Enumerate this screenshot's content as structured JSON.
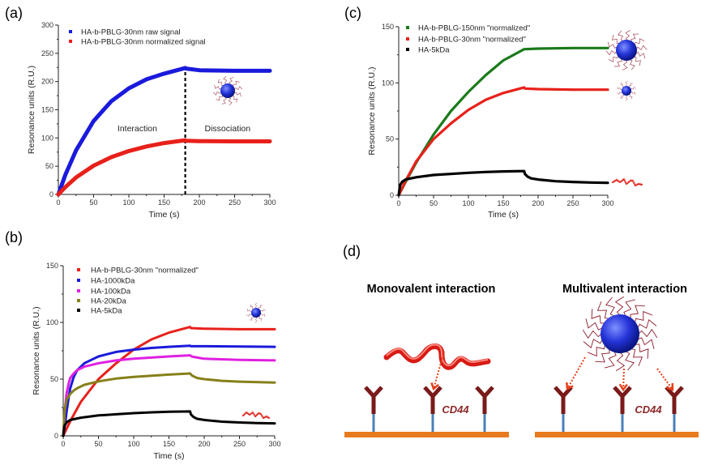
{
  "panel_labels": {
    "a": "(a)",
    "b": "(b)",
    "c": "(c)",
    "d": "(d)"
  },
  "chart_data": [
    {
      "panel": "(a)",
      "type": "line",
      "xlabel": "Time (s)",
      "ylabel": "Resonance units (R.U.)",
      "xlim": [
        0,
        300
      ],
      "ylim": [
        0,
        300
      ],
      "xticks": [
        0,
        50,
        100,
        150,
        200,
        250,
        300
      ],
      "yticks": [
        0,
        50,
        100,
        150,
        200,
        250,
        300
      ],
      "grid": false,
      "legend": "top-left",
      "vline_x": 180,
      "annotations": [
        "Interaction",
        "Dissociation"
      ],
      "series": [
        {
          "name": "HA-b-PBLG-30nm raw signal",
          "color": "#1a1adc",
          "x": [
            0,
            10,
            25,
            50,
            75,
            100,
            125,
            150,
            180,
            181,
            200,
            250,
            300
          ],
          "y": [
            0,
            35,
            78,
            130,
            165,
            188,
            204,
            214,
            224,
            223,
            220,
            219,
            219
          ]
        },
        {
          "name": "HA-b-PBLG-30nm normalized signal",
          "color": "#e8201a",
          "x": [
            0,
            10,
            25,
            50,
            75,
            100,
            125,
            150,
            180,
            181,
            200,
            250,
            300
          ],
          "y": [
            0,
            13,
            30,
            51,
            66,
            77,
            85,
            91,
            96,
            95,
            94.5,
            94,
            94
          ]
        }
      ]
    },
    {
      "panel": "(b)",
      "type": "line",
      "xlabel": "Time (s)",
      "ylabel": "Resonance units (R.U.)",
      "xlim": [
        0,
        300
      ],
      "ylim": [
        0,
        150
      ],
      "xticks": [
        0,
        50,
        100,
        150,
        200,
        250,
        300
      ],
      "yticks": [
        0,
        50,
        100,
        150
      ],
      "grid": false,
      "legend": "top-left",
      "series": [
        {
          "name": "HA-b-PBLG-30nm \"normalized\"",
          "color": "#e8201a",
          "x": [
            0,
            10,
            25,
            50,
            75,
            100,
            125,
            150,
            180,
            181,
            200,
            250,
            300
          ],
          "y": [
            0,
            13,
            30,
            50,
            64,
            76,
            85,
            91,
            96,
            95,
            94.5,
            94,
            94
          ]
        },
        {
          "name": "HA-1000kDa",
          "color": "#1a1adc",
          "x": [
            0,
            3,
            5,
            8,
            10,
            15,
            20,
            30,
            40,
            50,
            75,
            100,
            125,
            150,
            180,
            181,
            200,
            250,
            300
          ],
          "y": [
            0,
            12,
            22,
            35,
            42,
            52,
            58,
            64,
            67,
            70,
            74,
            76,
            77.5,
            78.5,
            79.5,
            79,
            79,
            78.7,
            78.5
          ]
        },
        {
          "name": "HA-100kDa",
          "color": "#e020e0",
          "x": [
            0,
            2,
            5,
            8,
            10,
            15,
            20,
            30,
            50,
            75,
            100,
            150,
            180,
            182,
            190,
            200,
            250,
            300
          ],
          "y": [
            0,
            20,
            38,
            47,
            51,
            55,
            58,
            61,
            64,
            66.5,
            68,
            70,
            71,
            70,
            69,
            68,
            67,
            66.5
          ]
        },
        {
          "name": "HA-20kDa",
          "color": "#86801a",
          "x": [
            0,
            2,
            5,
            10,
            15,
            20,
            30,
            50,
            75,
            100,
            150,
            180,
            183,
            190,
            200,
            225,
            250,
            300
          ],
          "y": [
            0,
            22,
            32,
            37,
            40,
            42,
            45,
            48,
            50.5,
            52,
            54,
            55,
            53,
            51,
            50,
            48.5,
            47.8,
            47
          ]
        },
        {
          "name": "HA-5kDa",
          "color": "#000000",
          "x": [
            0,
            2,
            5,
            10,
            25,
            50,
            75,
            100,
            125,
            150,
            180,
            181,
            185,
            190,
            200,
            225,
            250,
            275,
            300
          ],
          "y": [
            0,
            9,
            12,
            14,
            16,
            18,
            19,
            20,
            20.7,
            21.2,
            21.5,
            19,
            16.5,
            15,
            14,
            12.5,
            11.8,
            11.3,
            11
          ]
        }
      ]
    },
    {
      "panel": "(c)",
      "type": "line",
      "xlabel": "Time (s)",
      "ylabel": "Resonance units (R.U.)",
      "xlim": [
        0,
        300
      ],
      "ylim": [
        0,
        150
      ],
      "xticks": [
        0,
        50,
        100,
        150,
        200,
        250,
        300
      ],
      "yticks": [
        0,
        50,
        100,
        150
      ],
      "grid": false,
      "legend": "top-left",
      "series": [
        {
          "name": "HA-b-PBLG-150nm \"normalized\"",
          "color": "#1a7a1a",
          "x": [
            0,
            10,
            25,
            50,
            75,
            100,
            125,
            150,
            180,
            181,
            200,
            250,
            300
          ],
          "y": [
            0,
            12,
            29,
            54,
            75,
            92,
            107,
            120,
            130,
            130,
            130.5,
            131,
            131
          ]
        },
        {
          "name": "HA-b-PBLG-30nm \"normalized\"",
          "color": "#e8201a",
          "x": [
            0,
            10,
            25,
            50,
            75,
            100,
            125,
            150,
            180,
            181,
            200,
            250,
            300
          ],
          "y": [
            0,
            13,
            30,
            50,
            64,
            76,
            85,
            91,
            96,
            95,
            94.5,
            94,
            94
          ]
        },
        {
          "name": "HA-5kDa",
          "color": "#000000",
          "x": [
            0,
            2,
            5,
            10,
            25,
            50,
            75,
            100,
            125,
            150,
            180,
            181,
            185,
            190,
            200,
            225,
            250,
            275,
            300
          ],
          "y": [
            0,
            9,
            12,
            14,
            16,
            18,
            19,
            20,
            20.7,
            21.2,
            21.5,
            19,
            16.5,
            15,
            14,
            12.5,
            11.8,
            11.3,
            11
          ]
        }
      ]
    }
  ],
  "diagram": {
    "monovalent_title": "Monovalent interaction",
    "multivalent_title": "Multivalent interaction",
    "receptor_label": "CD44",
    "colors": {
      "surface": "#e87a1e",
      "receptor": "#7a1a1a",
      "stem": "#4a80b8",
      "polymer": "#e8241c",
      "particle": "#2030d0"
    }
  }
}
